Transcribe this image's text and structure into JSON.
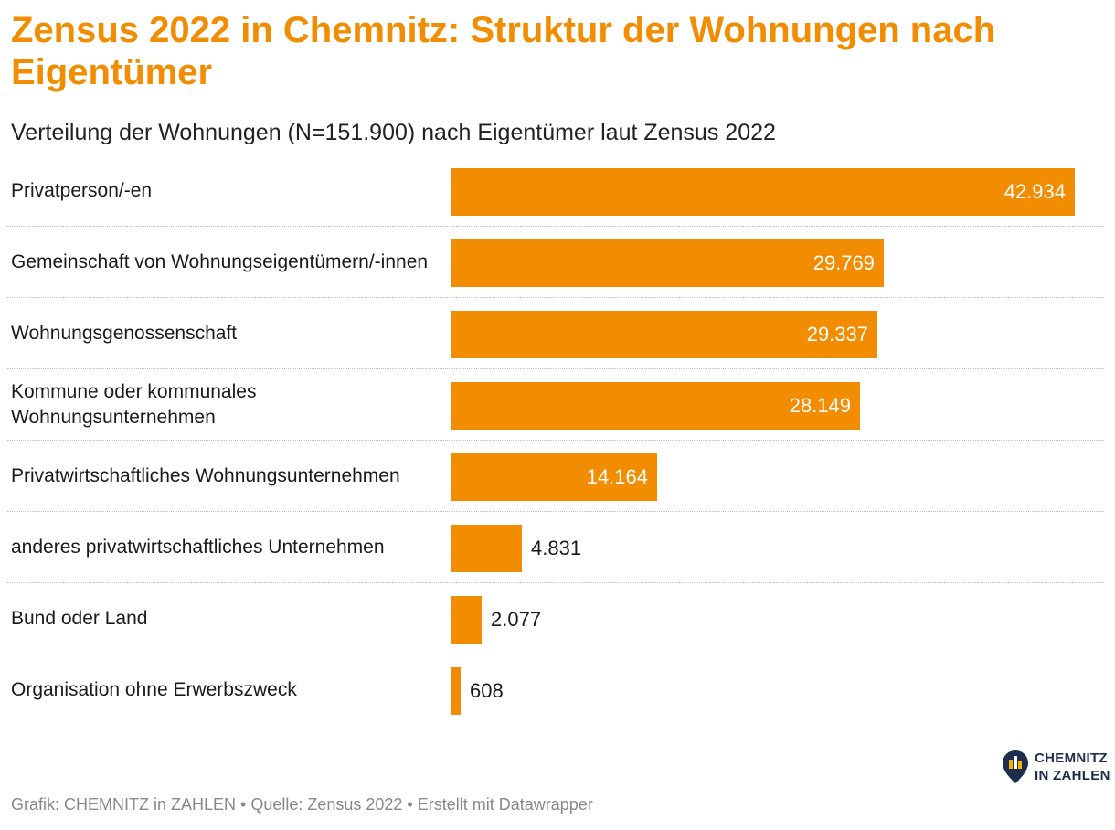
{
  "title": "Zensus 2022 in Chemnitz: Struktur der Wohnungen nach Eigentümer",
  "subtitle": "Verteilung der Wohnungen (N=151.900) nach Eigentümer laut Zensus 2022",
  "footer": "Grafik: CHEMNITZ in ZAHLEN • Quelle: Zensus 2022 • Erstellt mit Datawrapper",
  "logo": {
    "line1": "CHEMNITZ",
    "line2": "IN ZAHLEN"
  },
  "colors": {
    "accent": "#f28c00",
    "logo": "#1f2d4d"
  },
  "chart_data": {
    "type": "bar",
    "orientation": "horizontal",
    "title": "Zensus 2022 in Chemnitz: Struktur der Wohnungen nach Eigentümer",
    "subtitle": "Verteilung der Wohnungen (N=151.900) nach Eigentümer laut Zensus 2022",
    "categories": [
      "Privatperson/-en",
      "Gemeinschaft von Wohnungseigentümern/-innen",
      "Wohnungsgenossenschaft",
      "Kommune oder kommunales Wohnungsunternehmen",
      "Privatwirtschaftliches Wohnungsunternehmen",
      "anderes privatwirtschaftliches Unternehmen",
      "Bund oder Land",
      "Organisation ohne Erwerbszweck"
    ],
    "values": [
      42934,
      29769,
      29337,
      28149,
      14164,
      4831,
      2077,
      608
    ],
    "value_labels": [
      "42.934",
      "29.769",
      "29.337",
      "28.149",
      "14.164",
      "4.831",
      "2.077",
      "608"
    ],
    "xlim": [
      0,
      42934
    ],
    "grid": false,
    "legend": "none"
  }
}
